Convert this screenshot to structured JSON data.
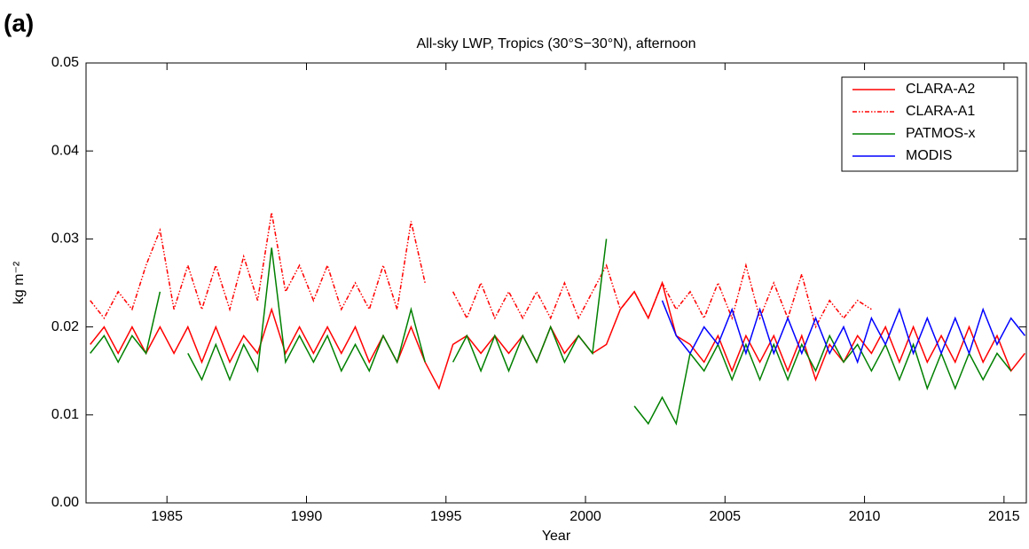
{
  "chart_data": {
    "type": "line",
    "panel_label": "(a)",
    "title": "All-sky LWP, Tropics (30°S−30°N), afternoon",
    "x_label": "Year",
    "y_label": "kg m⁻²",
    "xlim": [
      1982.1,
      2015.8
    ],
    "ylim": [
      0,
      0.05
    ],
    "xticks": [
      1985,
      1990,
      1995,
      2000,
      2005,
      2010,
      2015
    ],
    "yticks": [
      {
        "value": 0,
        "label": "0.00"
      },
      {
        "value": 0.01,
        "label": "0.01"
      },
      {
        "value": 0.02,
        "label": "0.02"
      },
      {
        "value": 0.03,
        "label": "0.03"
      },
      {
        "value": 0.04,
        "label": "0.04"
      },
      {
        "value": 0.05,
        "label": "0.05"
      }
    ],
    "grid": false,
    "legend": "top-right",
    "series": [
      {
        "name": "CLARA-A2",
        "color": "#ff0000",
        "dash": "solid",
        "x": [
          1982.25,
          1982.75,
          1983.25,
          1983.75,
          1984.25,
          1984.75,
          1985.25,
          1985.75,
          1986.25,
          1986.75,
          1987.25,
          1987.75,
          1988.25,
          1988.75,
          1989.25,
          1989.75,
          1990.25,
          1990.75,
          1991.25,
          1991.75,
          1992.25,
          1992.75,
          1993.25,
          1993.75,
          1994.25,
          1994.75,
          1995.25,
          1995.75,
          1996.25,
          1996.75,
          1997.25,
          1997.75,
          1998.25,
          1998.75,
          1999.25,
          1999.75,
          2000.25,
          2000.75,
          2001.25,
          2001.75,
          2002.25,
          2002.75,
          2003.25,
          2003.75,
          2004.25,
          2004.75,
          2005.25,
          2005.75,
          2006.25,
          2006.75,
          2007.25,
          2007.75,
          2008.25,
          2008.75,
          2009.25,
          2009.75,
          2010.25,
          2010.75,
          2011.25,
          2011.75,
          2012.25,
          2012.75,
          2013.25,
          2013.75,
          2014.25,
          2014.75,
          2015.25,
          2015.75
        ],
        "values": [
          0.018,
          0.02,
          0.017,
          0.02,
          0.017,
          0.02,
          0.017,
          0.02,
          0.016,
          0.02,
          0.016,
          0.019,
          0.017,
          0.022,
          0.017,
          0.02,
          0.017,
          0.02,
          0.017,
          0.02,
          0.016,
          0.019,
          0.016,
          0.02,
          0.016,
          0.013,
          0.018,
          0.019,
          0.017,
          0.019,
          0.017,
          0.019,
          0.016,
          0.02,
          0.017,
          0.019,
          0.017,
          0.018,
          0.022,
          0.024,
          0.021,
          0.025,
          0.019,
          0.018,
          0.016,
          0.019,
          0.015,
          0.019,
          0.016,
          0.019,
          0.015,
          0.019,
          0.014,
          0.018,
          0.016,
          0.019,
          0.017,
          0.02,
          0.016,
          0.02,
          0.016,
          0.019,
          0.016,
          0.02,
          0.016,
          0.019,
          0.015,
          0.017
        ]
      },
      {
        "name": "CLARA-A1",
        "color": "#ff0000",
        "dash": "dashdotdot",
        "x": [
          1982.25,
          1982.75,
          1983.25,
          1983.75,
          1984.25,
          1984.75,
          1985.25,
          1985.75,
          1986.25,
          1986.75,
          1987.25,
          1987.75,
          1988.25,
          1988.75,
          1989.25,
          1989.75,
          1990.25,
          1990.75,
          1991.25,
          1991.75,
          1992.25,
          1992.75,
          1993.25,
          1993.75,
          1994.25,
          1994.75,
          1995.25,
          1995.75,
          1996.25,
          1996.75,
          1997.25,
          1997.75,
          1998.25,
          1998.75,
          1999.25,
          1999.75,
          2000.25,
          2000.75,
          2001.25,
          2001.75,
          2002.25,
          2002.75,
          2003.25,
          2003.75,
          2004.25,
          2004.75,
          2005.25,
          2005.75,
          2006.25,
          2006.75,
          2007.25,
          2007.75,
          2008.25,
          2008.75,
          2009.25,
          2009.75,
          2010.25
        ],
        "values": [
          0.023,
          0.021,
          0.024,
          0.022,
          0.027,
          0.031,
          0.022,
          0.027,
          0.022,
          0.027,
          0.022,
          0.028,
          0.023,
          0.033,
          0.024,
          0.027,
          0.023,
          0.027,
          0.022,
          0.025,
          0.022,
          0.027,
          0.022,
          0.032,
          0.025,
          null,
          0.024,
          0.021,
          0.025,
          0.021,
          0.024,
          0.021,
          0.024,
          0.021,
          0.025,
          0.021,
          0.024,
          0.027,
          0.022,
          0.024,
          0.021,
          0.025,
          0.022,
          0.024,
          0.021,
          0.025,
          0.021,
          0.027,
          0.021,
          0.025,
          0.021,
          0.026,
          0.02,
          0.023,
          0.021,
          0.023,
          0.022
        ]
      },
      {
        "name": "PATMOS-x",
        "color": "#008000",
        "dash": "solid",
        "x": [
          1982.25,
          1982.75,
          1983.25,
          1983.75,
          1984.25,
          1984.75,
          1985.25,
          1985.75,
          1986.25,
          1986.75,
          1987.25,
          1987.75,
          1988.25,
          1988.75,
          1989.25,
          1989.75,
          1990.25,
          1990.75,
          1991.25,
          1991.75,
          1992.25,
          1992.75,
          1993.25,
          1993.75,
          1994.25,
          1994.75,
          1995.25,
          1995.75,
          1996.25,
          1996.75,
          1997.25,
          1997.75,
          1998.25,
          1998.75,
          1999.25,
          1999.75,
          2000.25,
          2000.75,
          2001.25,
          2001.75,
          2002.25,
          2002.75,
          2003.25,
          2003.75,
          2004.25,
          2004.75,
          2005.25,
          2005.75,
          2006.25,
          2006.75,
          2007.25,
          2007.75,
          2008.25,
          2008.75,
          2009.25,
          2009.75,
          2010.25,
          2010.75,
          2011.25,
          2011.75,
          2012.25,
          2012.75,
          2013.25,
          2013.75,
          2014.25,
          2014.75,
          2015.25
        ],
        "values": [
          0.017,
          0.019,
          0.016,
          0.019,
          0.017,
          0.024,
          null,
          0.017,
          0.014,
          0.018,
          0.014,
          0.018,
          0.015,
          0.029,
          0.016,
          0.019,
          0.016,
          0.019,
          0.015,
          0.018,
          0.015,
          0.019,
          0.016,
          0.022,
          0.016,
          null,
          0.016,
          0.019,
          0.015,
          0.019,
          0.015,
          0.019,
          0.016,
          0.02,
          0.016,
          0.019,
          0.017,
          0.03,
          null,
          0.011,
          0.009,
          0.012,
          0.009,
          0.017,
          0.015,
          0.018,
          0.014,
          0.018,
          0.014,
          0.018,
          0.014,
          0.018,
          0.015,
          0.019,
          0.016,
          0.018,
          0.015,
          0.018,
          0.014,
          0.018,
          0.013,
          0.017,
          0.013,
          0.017,
          0.014,
          0.017,
          0.015
        ]
      },
      {
        "name": "MODIS",
        "color": "#0000ff",
        "dash": "solid",
        "x": [
          2002.75,
          2003.25,
          2003.75,
          2004.25,
          2004.75,
          2005.25,
          2005.75,
          2006.25,
          2006.75,
          2007.25,
          2007.75,
          2008.25,
          2008.75,
          2009.25,
          2009.75,
          2010.25,
          2010.75,
          2011.25,
          2011.75,
          2012.25,
          2012.75,
          2013.25,
          2013.75,
          2014.25,
          2014.75,
          2015.25,
          2015.75
        ],
        "values": [
          0.023,
          0.019,
          0.017,
          0.02,
          0.018,
          0.022,
          0.017,
          0.022,
          0.017,
          0.021,
          0.017,
          0.021,
          0.017,
          0.02,
          0.016,
          0.021,
          0.018,
          0.022,
          0.017,
          0.021,
          0.017,
          0.021,
          0.017,
          0.022,
          0.018,
          0.021,
          0.019
        ]
      }
    ]
  }
}
